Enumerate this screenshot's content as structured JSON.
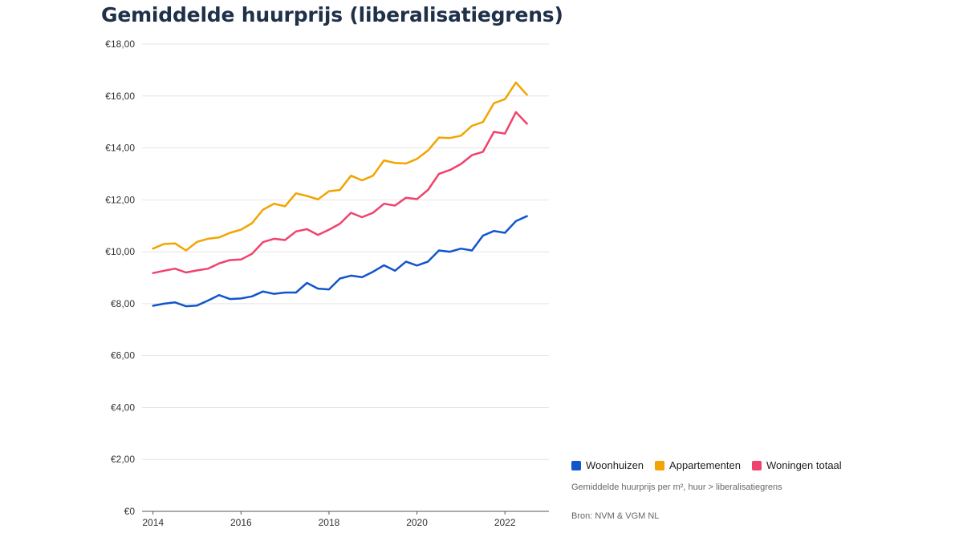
{
  "chart_data": {
    "type": "line",
    "title": "Gemiddelde huurprijs (liberalisatiegrens)",
    "note": "Gemiddelde huurprijs per m², huur > liberalisatiegrens",
    "source": "Bron: NVM & VGM NL",
    "y_tick_labels": [
      "€0",
      "€2,00",
      "€4,00",
      "€6,00",
      "€8,00",
      "€10,00",
      "€12,00",
      "€14,00",
      "€16,00",
      "€18,00"
    ],
    "y_tick_values": [
      0,
      2,
      4,
      6,
      8,
      10,
      12,
      14,
      16,
      18
    ],
    "x_tick_labels": [
      "2014",
      "2016",
      "2018",
      "2020",
      "2022"
    ],
    "x_tick_values": [
      2014,
      2016,
      2018,
      2020,
      2022
    ],
    "ylim": [
      0,
      18
    ],
    "xlim": [
      2013.75,
      2023.0
    ],
    "grid": true,
    "legend_position": "bottom-right",
    "x": [
      2014.0,
      2014.25,
      2014.5,
      2014.75,
      2015.0,
      2015.25,
      2015.5,
      2015.75,
      2016.0,
      2016.25,
      2016.5,
      2016.75,
      2017.0,
      2017.25,
      2017.5,
      2017.75,
      2018.0,
      2018.25,
      2018.5,
      2018.75,
      2019.0,
      2019.25,
      2019.5,
      2019.75,
      2020.0,
      2020.25,
      2020.5,
      2020.75,
      2021.0,
      2021.25,
      2021.5,
      2021.75,
      2022.0,
      2022.25,
      2022.5
    ],
    "series": [
      {
        "name": "Woonhuizen",
        "color": "#1155cc",
        "values": [
          7.92,
          8.0,
          8.05,
          7.9,
          7.93,
          8.12,
          8.33,
          8.18,
          8.2,
          8.28,
          8.47,
          8.38,
          8.43,
          8.43,
          8.8,
          8.58,
          8.55,
          8.97,
          9.08,
          9.02,
          9.23,
          9.48,
          9.27,
          9.62,
          9.47,
          9.62,
          10.05,
          10.0,
          10.12,
          10.05,
          10.62,
          10.8,
          10.73,
          11.18,
          11.37
        ]
      },
      {
        "name": "Appartementen",
        "color": "#f2a400",
        "values": [
          10.12,
          10.3,
          10.32,
          10.05,
          10.38,
          10.5,
          10.55,
          10.73,
          10.85,
          11.1,
          11.62,
          11.85,
          11.75,
          12.25,
          12.15,
          12.02,
          12.33,
          12.38,
          12.93,
          12.75,
          12.93,
          13.52,
          13.42,
          13.4,
          13.58,
          13.9,
          14.4,
          14.38,
          14.47,
          14.85,
          15.0,
          15.72,
          15.88,
          16.52,
          16.05
        ]
      },
      {
        "name": "Woningen totaal",
        "color": "#f0426d",
        "values": [
          9.18,
          9.27,
          9.35,
          9.2,
          9.28,
          9.35,
          9.55,
          9.68,
          9.7,
          9.92,
          10.37,
          10.5,
          10.45,
          10.78,
          10.87,
          10.65,
          10.85,
          11.08,
          11.5,
          11.33,
          11.5,
          11.85,
          11.78,
          12.08,
          12.03,
          12.38,
          13.0,
          13.15,
          13.38,
          13.72,
          13.85,
          14.62,
          14.55,
          15.38,
          14.93
        ]
      }
    ]
  }
}
